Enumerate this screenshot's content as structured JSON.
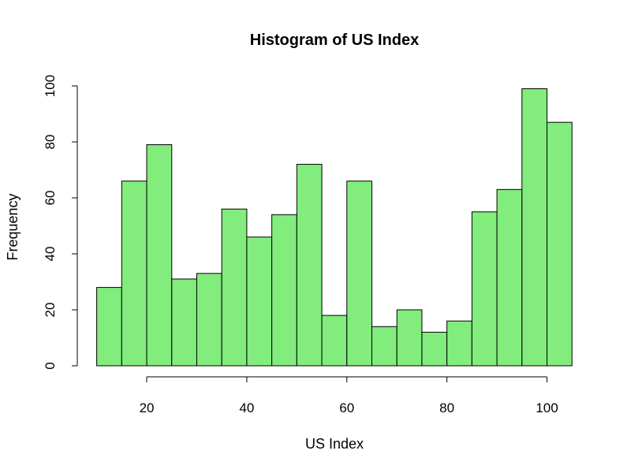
{
  "chart_data": {
    "type": "bar",
    "title": "Histogram of US Index",
    "xlabel": "US Index",
    "ylabel": "Frequency",
    "bar_color": "#82ec7d",
    "bin_edges": [
      10,
      15,
      20,
      25,
      30,
      35,
      40,
      45,
      50,
      55,
      60,
      65,
      70,
      75,
      80,
      85,
      90,
      95,
      100,
      105
    ],
    "values": [
      28,
      66,
      79,
      31,
      33,
      56,
      46,
      54,
      72,
      18,
      66,
      14,
      20,
      12,
      16,
      55,
      63,
      99,
      87
    ],
    "xticks": [
      20,
      40,
      60,
      80,
      100
    ],
    "yticks": [
      0,
      20,
      40,
      60,
      80,
      100
    ],
    "xlim": [
      10,
      105
    ],
    "ylim": [
      0,
      100
    ],
    "grid": false,
    "legend": "none"
  }
}
